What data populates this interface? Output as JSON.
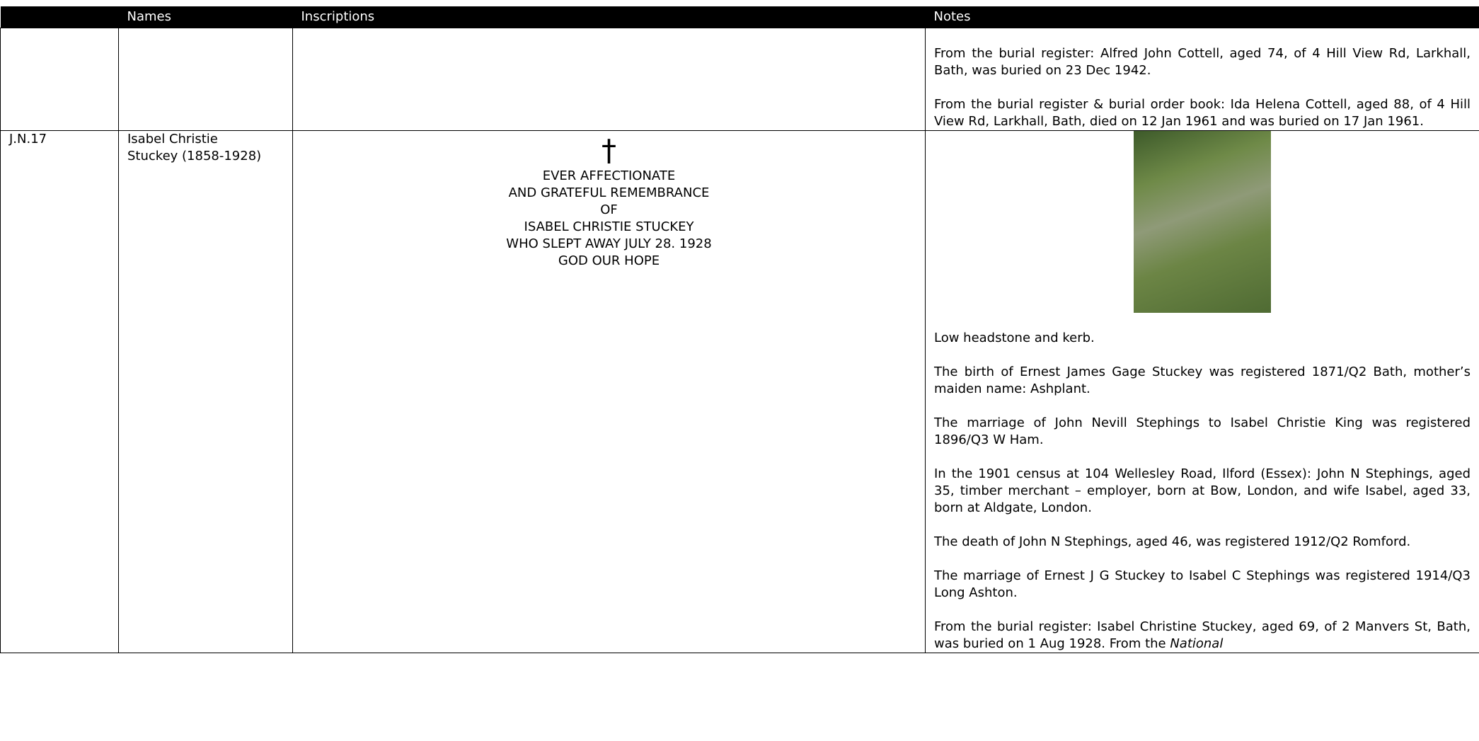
{
  "header": {
    "columns": [
      "",
      "Names",
      "Inscriptions",
      "Notes"
    ]
  },
  "rows": [
    {
      "ref": "",
      "names": [],
      "inscription": [],
      "notes": [
        {
          "text": "From the burial register: Alfred John Cottell, aged 74, of 4 Hill View Rd, Larkhall, Bath, was buried on 23 Dec 1942."
        },
        {
          "text": "From the burial register & burial order book: Ida Helena Cottell, aged 88, of 4 Hill View Rd, Larkhall, Bath, died on 12 Jan 1961 and was buried on 17 Jan 1961."
        }
      ]
    },
    {
      "ref": "J.N.17",
      "names": [
        "Isabel Christie",
        "Stuckey (1858-1928)"
      ],
      "cross": "†",
      "inscription": [
        "EVER AFFECTIONATE",
        "AND GRATEFUL REMEMBRANCE",
        "OF",
        "ISABEL CHRISTIE STUCKEY",
        "WHO SLEPT AWAY JULY 28. 1928",
        "GOD OUR HOPE"
      ],
      "notes": [
        {
          "text": "Low headstone and kerb."
        },
        {
          "text": "The birth of Ernest James Gage Stuckey was registered 1871/Q2 Bath, mother’s maiden name: Ashplant."
        },
        {
          "text": "The marriage of John Nevill Stephings to Isabel Christie King was registered 1896/Q3 W Ham."
        },
        {
          "text": "In the 1901 census at 104 Wellesley Road, Ilford (Essex): John N Stephings, aged 35, timber merchant – employer, born at Bow, London, and wife Isabel, aged 33, born at Aldgate, London."
        },
        {
          "text": "The death of John N Stephings, aged 46, was registered 1912/Q2 Romford."
        },
        {
          "text": "The marriage of Ernest J G Stuckey to Isabel C Stephings was registered 1914/Q3 Long Ashton."
        },
        {
          "text": "From the burial register: Isabel Christine Stuckey, aged 69, of 2 Manvers St, Bath, was buried on 1 Aug 1928. From the ",
          "italic": "National"
        }
      ]
    }
  ]
}
